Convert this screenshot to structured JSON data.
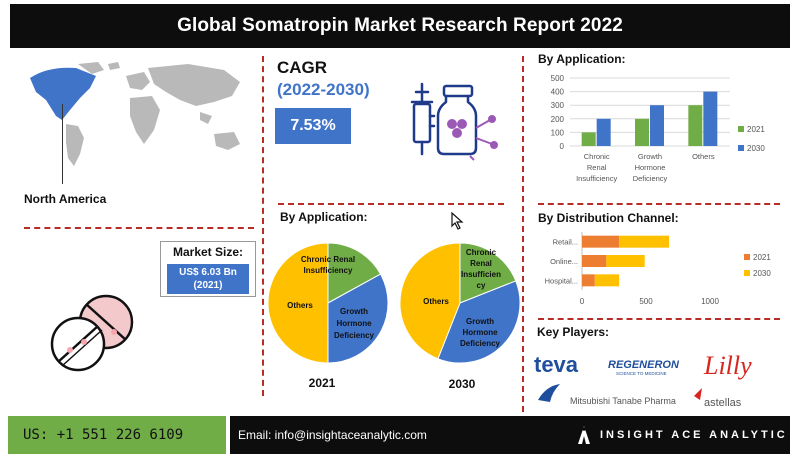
{
  "header": {
    "title": "Global Somatropin Market  Research Report 2022"
  },
  "region": {
    "label": "North America"
  },
  "market_size": {
    "label": "Market Size:",
    "value_line1": "US$ 6.03 Bn",
    "value_line2": "(2021)"
  },
  "cagr": {
    "title": "CAGR",
    "period": "(2022-2030)",
    "value": "7.53%"
  },
  "pies": {
    "title": "By Application:",
    "year_2021": "2021",
    "year_2030": "2030",
    "labels_2021": {
      "crf": [
        "Chronic Renal",
        "Insufficiency"
      ],
      "ghd": [
        "Growth",
        "Hormone",
        "Deficiency"
      ],
      "others": "Others"
    },
    "labels_2030": {
      "crf": [
        "Chronic",
        "Renal",
        "Insufficien",
        "cy"
      ],
      "ghd": [
        "Growth",
        "Hormone",
        "Deficiency"
      ],
      "others": "Others"
    }
  },
  "app_bars": {
    "title": "By Application:"
  },
  "dist": {
    "title": "By Distribution Channel:"
  },
  "players": {
    "title": "Key Players:",
    "teva": "teva",
    "regeneron": "REGENERON",
    "regeneron_tag": "SCIENCE TO MEDICINE",
    "lilly": "Lilly",
    "mitsubishi": "Mitsubishi Tanabe Pharma",
    "astellas": "astellas"
  },
  "footer": {
    "phone": "US: +1 551 226 6109",
    "email": "Email: info@insightaceanalytic.com",
    "brand": "INSIGHT ACE ANALYTIC"
  },
  "colors": {
    "blue": "#3f74c9",
    "green": "#70ad47",
    "yellow": "#ffc000",
    "orange": "#ed7d31",
    "red_dash": "#b82c28",
    "dark": "#0d0d0d"
  },
  "icons": [
    "world-map-icon",
    "pills-icon",
    "drug-vial-syringe-icon",
    "cursor-icon",
    "insight-ace-logo-icon"
  ],
  "chart_data": [
    {
      "type": "bar",
      "title": "By Application:",
      "categories": [
        [
          "Chronic",
          "Renal",
          "Insufficiency"
        ],
        [
          "Growth",
          "Hormone",
          "Deficiency"
        ],
        [
          "Others"
        ]
      ],
      "series": [
        {
          "name": "2021",
          "values": [
            100,
            200,
            300
          ],
          "color": "#70ad47"
        },
        {
          "name": "2030",
          "values": [
            200,
            300,
            400
          ],
          "color": "#3f74c9"
        }
      ],
      "ylim": [
        0,
        500
      ],
      "yticks": [
        0,
        100,
        200,
        300,
        400,
        500
      ],
      "grid": true,
      "legend": "right"
    },
    {
      "type": "bar",
      "orientation": "horizontal",
      "stacked": true,
      "title": "By Distribution Channel:",
      "categories": [
        "Retail...",
        "Online...",
        "Hospital..."
      ],
      "series": [
        {
          "name": "2021",
          "values": [
            290,
            190,
            100
          ],
          "color": "#ed7d31"
        },
        {
          "name": "2030",
          "values": [
            390,
            300,
            190
          ],
          "color": "#ffc000"
        }
      ],
      "xlim": [
        0,
        1000
      ],
      "xticks": [
        0,
        500,
        1000
      ],
      "legend": "right"
    },
    {
      "type": "pie",
      "title": "2021",
      "slices": [
        {
          "label": "Chronic Renal Insufficiency",
          "value": 17,
          "color": "#70ad47"
        },
        {
          "label": "Growth Hormone Deficiency",
          "value": 33,
          "color": "#3f74c9"
        },
        {
          "label": "Others",
          "value": 50,
          "color": "#ffc000"
        }
      ]
    },
    {
      "type": "pie",
      "title": "2030",
      "slices": [
        {
          "label": "Chronic Renal Insufficiency",
          "value": 19,
          "color": "#70ad47"
        },
        {
          "label": "Growth Hormone Deficiency",
          "value": 37,
          "color": "#3f74c9"
        },
        {
          "label": "Others",
          "value": 44,
          "color": "#ffc000"
        }
      ]
    }
  ]
}
